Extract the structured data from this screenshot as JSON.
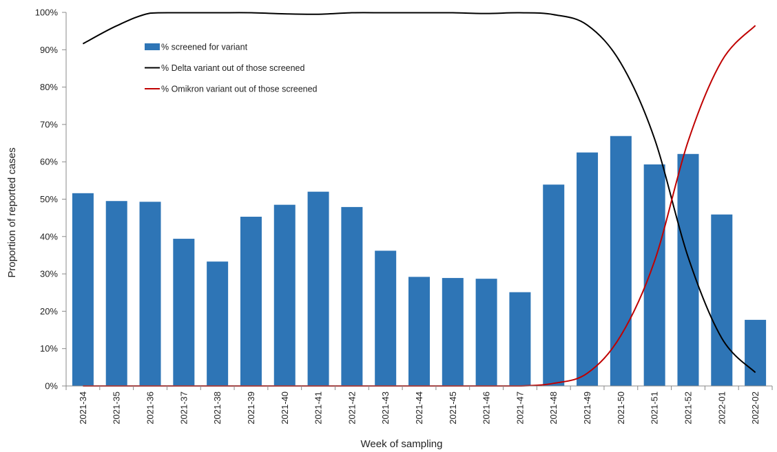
{
  "chart_data": {
    "type": "bar",
    "title": "",
    "xlabel": "Week of sampling",
    "ylabel": "Proportion of reported cases",
    "ylim": [
      0,
      100
    ],
    "y_ticks": [
      "0%",
      "10%",
      "20%",
      "30%",
      "40%",
      "50%",
      "60%",
      "70%",
      "80%",
      "90%",
      "100%"
    ],
    "grid": false,
    "legend_position": "top-left",
    "categories": [
      "2021-34",
      "2021-35",
      "2021-36",
      "2021-37",
      "2021-38",
      "2021-39",
      "2021-40",
      "2021-41",
      "2021-42",
      "2021-43",
      "2021-44",
      "2021-45",
      "2021-46",
      "2021-47",
      "2021-48",
      "2021-49",
      "2021-50",
      "2021-51",
      "2021-52",
      "2022-01",
      "2022-02"
    ],
    "series": [
      {
        "name": "% screened for variant",
        "type": "bar",
        "color": "#2e75b6",
        "values": [
          51.6,
          49.5,
          49.3,
          39.4,
          33.3,
          45.3,
          48.5,
          52.0,
          47.9,
          36.2,
          29.2,
          28.9,
          28.7,
          25.1,
          53.9,
          62.5,
          66.9,
          59.3,
          62.1,
          45.9,
          17.7
        ]
      },
      {
        "name": "% Delta variant out of those screened",
        "type": "line",
        "color": "#000000",
        "values": [
          91.6,
          96.4,
          99.8,
          99.9,
          99.9,
          99.9,
          99.6,
          99.5,
          99.9,
          99.9,
          99.9,
          99.9,
          99.7,
          99.9,
          99.4,
          96.6,
          86.4,
          66.2,
          34.5,
          12.8,
          3.6
        ]
      },
      {
        "name": "% Omikron variant out of those screened",
        "type": "line",
        "color": "#c00000",
        "values": [
          0,
          0,
          0,
          0,
          0,
          0,
          0,
          0,
          0,
          0,
          0,
          0,
          0,
          0,
          0.7,
          3.4,
          13.5,
          33.4,
          65.5,
          87.0,
          96.5
        ]
      }
    ]
  }
}
